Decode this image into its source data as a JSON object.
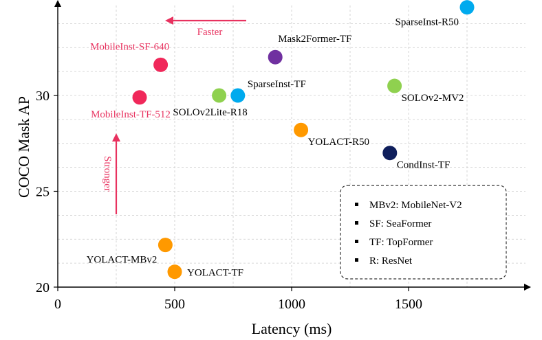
{
  "chart_data": {
    "type": "scatter",
    "title": "",
    "xlabel": "Latency (ms)",
    "ylabel": "COCO Mask AP",
    "xlim": [
      0,
      2000
    ],
    "ylim": [
      20,
      34.8
    ],
    "xticks": [
      0,
      500,
      1000,
      1500
    ],
    "yticks": [
      20,
      25,
      30
    ],
    "grid": true,
    "points": [
      {
        "name": "SparseInst-R50",
        "x": 1750,
        "y": 34.6,
        "color": "#00aaee",
        "label_pos": "left-below"
      },
      {
        "name": "Mask2Former-TF",
        "x": 930,
        "y": 32.0,
        "color": "#7030a0",
        "label_pos": "above-right"
      },
      {
        "name": "MobileInst-SF-640",
        "x": 440,
        "y": 31.6,
        "color": "#f0285a",
        "label_pos": "above-left",
        "highlight": true
      },
      {
        "name": "MobileInst-TF-512",
        "x": 350,
        "y": 29.9,
        "color": "#f0285a",
        "label_pos": "below-left",
        "highlight": true
      },
      {
        "name": "SOLOv2Lite-R18",
        "x": 690,
        "y": 30.0,
        "color": "#8fd14f",
        "label_pos": "below-left"
      },
      {
        "name": "SparseInst-TF",
        "x": 770,
        "y": 30.0,
        "color": "#00aaee",
        "label_pos": "right-up"
      },
      {
        "name": "SOLOv2-MV2",
        "x": 1440,
        "y": 30.5,
        "color": "#8fd14f",
        "label_pos": "below-right"
      },
      {
        "name": "YOLACT-R50",
        "x": 1040,
        "y": 28.2,
        "color": "#ff9900",
        "label_pos": "below-right"
      },
      {
        "name": "CondInst-TF",
        "x": 1420,
        "y": 27.0,
        "color": "#0f1f5c",
        "label_pos": "below-right"
      },
      {
        "name": "YOLACT-MBv2",
        "x": 460,
        "y": 22.2,
        "color": "#ff9900",
        "label_pos": "left-below"
      },
      {
        "name": "YOLACT-TF",
        "x": 500,
        "y": 20.8,
        "color": "#ff9900",
        "label_pos": "right"
      }
    ],
    "annotations": {
      "faster": "Faster",
      "stronger": "Stronger"
    },
    "legend": {
      "position": "bottom-right",
      "entries": [
        "MBv2: MobileNet-V2",
        "SF: SeaFormer",
        "TF: TopFormer",
        "R: ResNet"
      ]
    },
    "colors": {
      "highlight": "#e8325f",
      "axis": "#000000",
      "grid": "#cccccc"
    }
  }
}
